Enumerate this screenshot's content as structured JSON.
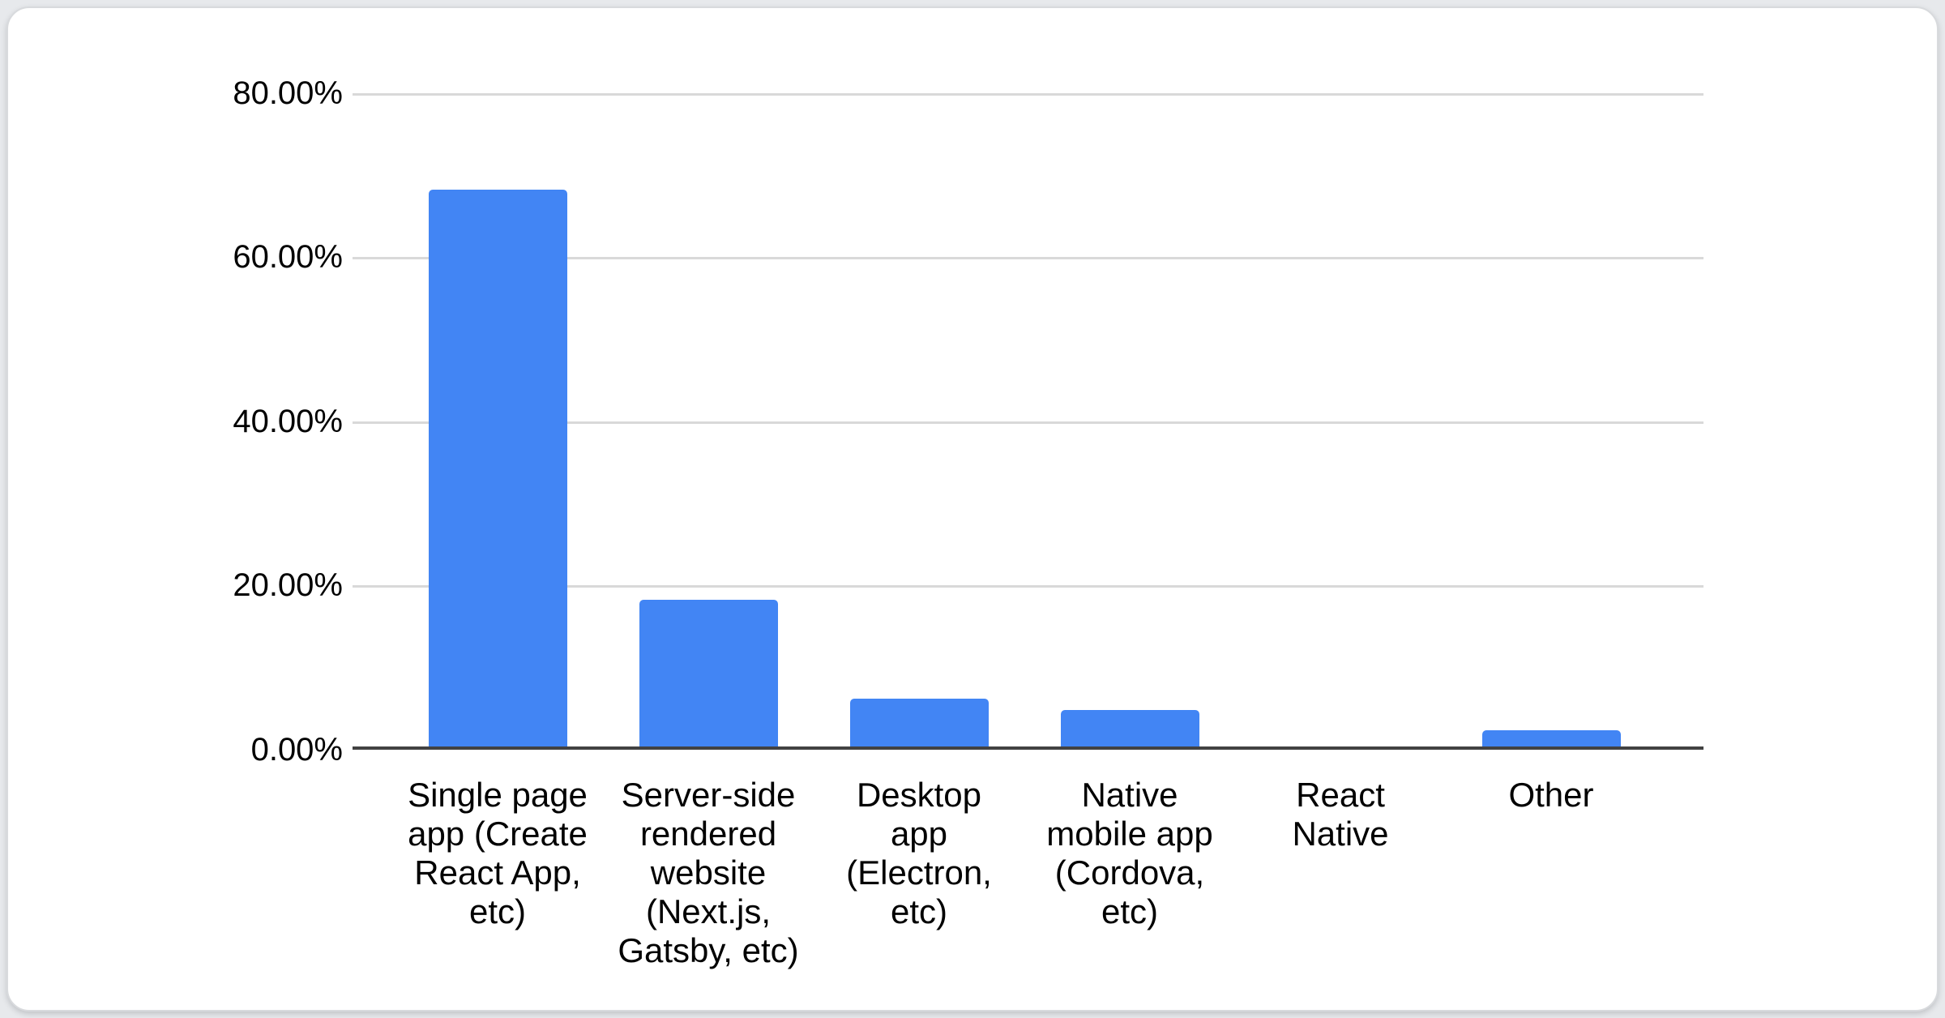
{
  "card": {
    "background": "#ffffff",
    "border_color": "#d8dadd"
  },
  "chart_data": {
    "type": "bar",
    "title": "",
    "xlabel": "",
    "ylabel": "",
    "categories": [
      "Single page app (Create React App, etc)",
      "Server-side rendered website (Next.js, Gatsby, etc)",
      "Desktop app (Electron, etc)",
      "Native mobile app (Cordova, etc)",
      "React Native",
      "Other"
    ],
    "category_label_lines": [
      [
        "Single page",
        "app (Create",
        "React App,",
        "etc)"
      ],
      [
        "Server-side",
        "rendered",
        "website",
        "(Next.js,",
        "Gatsby, etc)"
      ],
      [
        "Desktop",
        "app",
        "(Electron,",
        "etc)"
      ],
      [
        "Native",
        "mobile app",
        "(Cordova,",
        "etc)"
      ],
      [
        "React",
        "Native"
      ],
      [
        "Other"
      ]
    ],
    "values": [
      68.2,
      18.3,
      6.2,
      4.8,
      0.3,
      2.4
    ],
    "unit": "%",
    "ylim": [
      0,
      80
    ],
    "yticks_topdown": [
      "80.00%",
      "60.00%",
      "40.00%",
      "20.00%",
      "0.00%"
    ],
    "grid": true,
    "legend_position": "none",
    "bar_color": "#4285f4",
    "gridline_color": "#d9d9d9",
    "axis_color": "#424242"
  }
}
